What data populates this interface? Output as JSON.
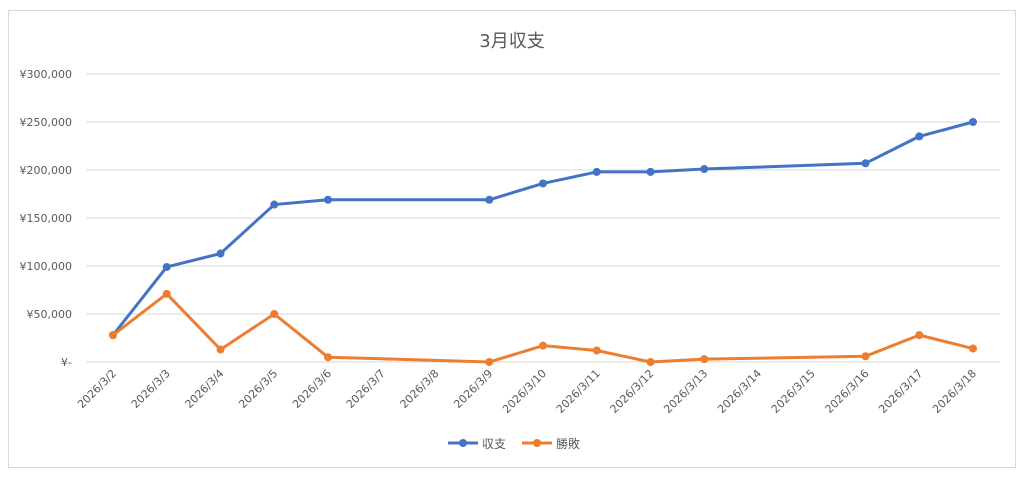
{
  "chart_data": {
    "type": "line",
    "title": "3月収支",
    "categories": [
      "2026/3/2",
      "2026/3/3",
      "2026/3/4",
      "2026/3/5",
      "2026/3/6",
      "2026/3/7",
      "2026/3/8",
      "2026/3/9",
      "2026/3/10",
      "2026/3/11",
      "2026/3/12",
      "2026/3/13",
      "2026/3/14",
      "2026/3/15",
      "2026/3/16",
      "2026/3/17",
      "2026/3/18"
    ],
    "x": [
      "2026/3/2",
      "2026/3/3",
      "2026/3/4",
      "2026/3/5",
      "2026/3/6",
      "2026/3/9",
      "2026/3/10",
      "2026/3/11",
      "2026/3/12",
      "2026/3/13",
      "2026/3/16",
      "2026/3/17",
      "2026/3/18"
    ],
    "series": [
      {
        "name": "収支",
        "color": "#4472c4",
        "values": [
          28000,
          99000,
          113000,
          164000,
          169000,
          169000,
          186000,
          198000,
          198000,
          201000,
          207000,
          235000,
          250000
        ]
      },
      {
        "name": "勝敗",
        "color": "#ed7d31",
        "values": [
          28000,
          71000,
          13000,
          50000,
          5000,
          0,
          17000,
          12000,
          0,
          3000,
          6000,
          28000,
          14000
        ]
      }
    ],
    "ylim": [
      0,
      300000
    ],
    "yticks": [
      0,
      50000,
      100000,
      150000,
      200000,
      250000,
      300000
    ],
    "ytick_labels": [
      "¥-",
      "¥50,000",
      "¥100,000",
      "¥150,000",
      "¥200,000",
      "¥250,000",
      "¥300,000"
    ],
    "grid": true,
    "legend_position": "bottom"
  }
}
